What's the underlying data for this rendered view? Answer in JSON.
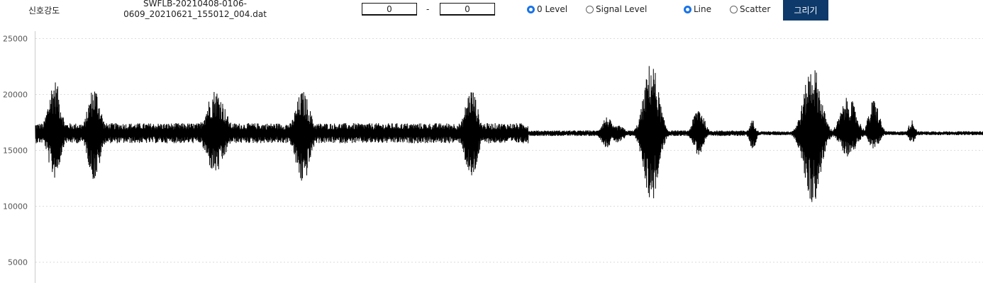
{
  "toolbar": {
    "signal_label": "신호강도",
    "filename_line1": "SWFLB-20210408-0106-",
    "filename_line2": "0609_20210621_155012_004.dat",
    "range_start": "0",
    "range_separator": "-",
    "range_end": "0",
    "level_options": [
      {
        "label": "0 Level",
        "selected": true
      },
      {
        "label": "Signal Level",
        "selected": false
      }
    ],
    "plot_options": [
      {
        "label": "Line",
        "selected": true
      },
      {
        "label": "Scatter",
        "selected": false
      }
    ],
    "draw_button": "그리기"
  },
  "colors": {
    "button_bg": "#0e3a6b",
    "radio_selected": "#1a73e8",
    "signal": "#000000",
    "grid": "#dddddd"
  },
  "chart_data": {
    "type": "line",
    "title": "",
    "xlabel": "",
    "ylabel": "",
    "ylim": [
      3000,
      25000
    ],
    "yticks": [
      5000,
      10000,
      15000,
      20000,
      25000
    ],
    "ytick_labels": [
      "5000",
      "10000",
      "15000",
      "20000",
      "25000"
    ],
    "grid": "horizontal dotted",
    "baseline": 16500,
    "num_samples": 4000,
    "bursts": [
      {
        "center": 0.02,
        "width": 0.012,
        "max": 21400,
        "min": 12400
      },
      {
        "center": 0.062,
        "width": 0.012,
        "max": 20800,
        "min": 12200
      },
      {
        "center": 0.19,
        "width": 0.018,
        "max": 20500,
        "min": 12800
      },
      {
        "center": 0.282,
        "width": 0.014,
        "max": 20300,
        "min": 11900
      },
      {
        "center": 0.46,
        "width": 0.012,
        "max": 20600,
        "min": 12200
      },
      {
        "center": 0.603,
        "width": 0.01,
        "max": 18000,
        "min": 15200
      },
      {
        "center": 0.615,
        "width": 0.012,
        "max": 17200,
        "min": 15600
      },
      {
        "center": 0.65,
        "width": 0.014,
        "max": 23000,
        "min": 10200
      },
      {
        "center": 0.7,
        "width": 0.01,
        "max": 19000,
        "min": 14500
      },
      {
        "center": 0.757,
        "width": 0.006,
        "max": 17700,
        "min": 15000
      },
      {
        "center": 0.82,
        "width": 0.016,
        "max": 22800,
        "min": 10100
      },
      {
        "center": 0.858,
        "width": 0.015,
        "max": 19800,
        "min": 14400
      },
      {
        "center": 0.885,
        "width": 0.01,
        "max": 19600,
        "min": 15000
      },
      {
        "center": 0.925,
        "width": 0.006,
        "max": 17700,
        "min": 15600
      }
    ],
    "noise_segments": [
      {
        "from": 0.0,
        "to": 0.52,
        "amplitude": 900
      },
      {
        "from": 0.52,
        "to": 0.76,
        "amplitude": 250
      },
      {
        "from": 0.76,
        "to": 1.0,
        "amplitude": 180
      }
    ]
  }
}
